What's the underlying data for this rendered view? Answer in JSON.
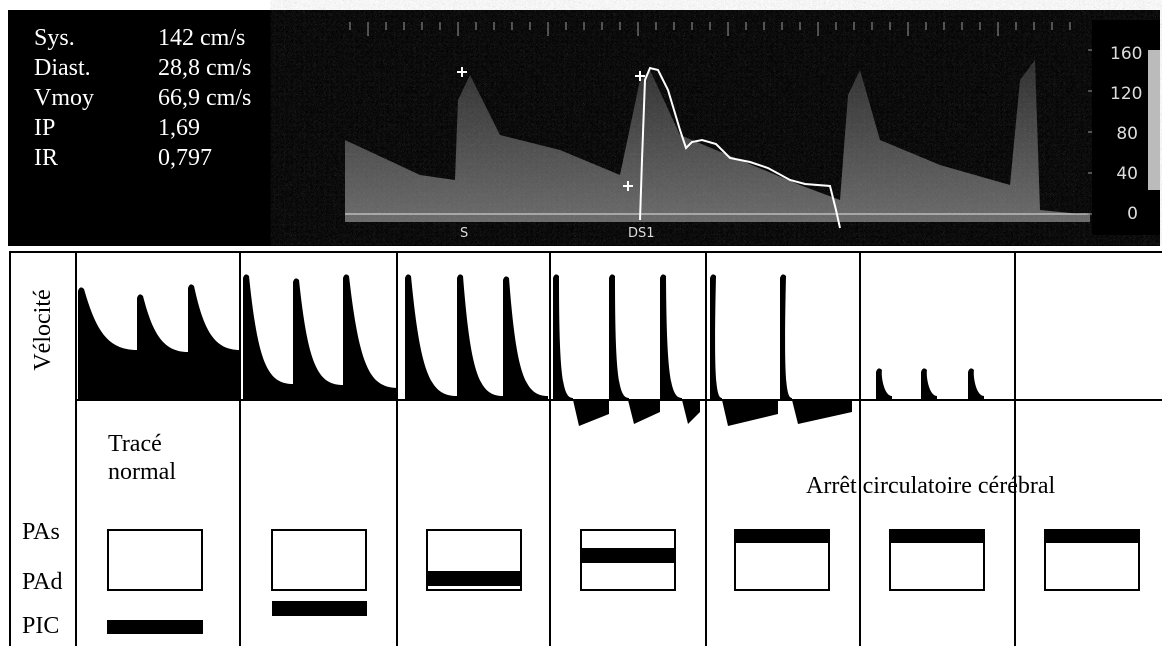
{
  "measurements": [
    {
      "label": "Sys.",
      "value": "142 cm/s"
    },
    {
      "label": "Diast.",
      "value": "28,8 cm/s"
    },
    {
      "label": "Vmoy",
      "value": "66,9 cm/s"
    },
    {
      "label": "IP",
      "value": "1,69"
    },
    {
      "label": "IR",
      "value": "0,797"
    }
  ],
  "doppler": {
    "scale": [
      "160",
      "120",
      "80",
      "40",
      "0"
    ],
    "markers": [
      "S",
      "DS1"
    ]
  },
  "diagram": {
    "y_axis_label": "Vélocité",
    "annotations": [
      "Tracé normal",
      "Arrêt circulatoire cérébral"
    ],
    "pressure_labels": [
      "PAs",
      "PAd",
      "PIC"
    ]
  }
}
